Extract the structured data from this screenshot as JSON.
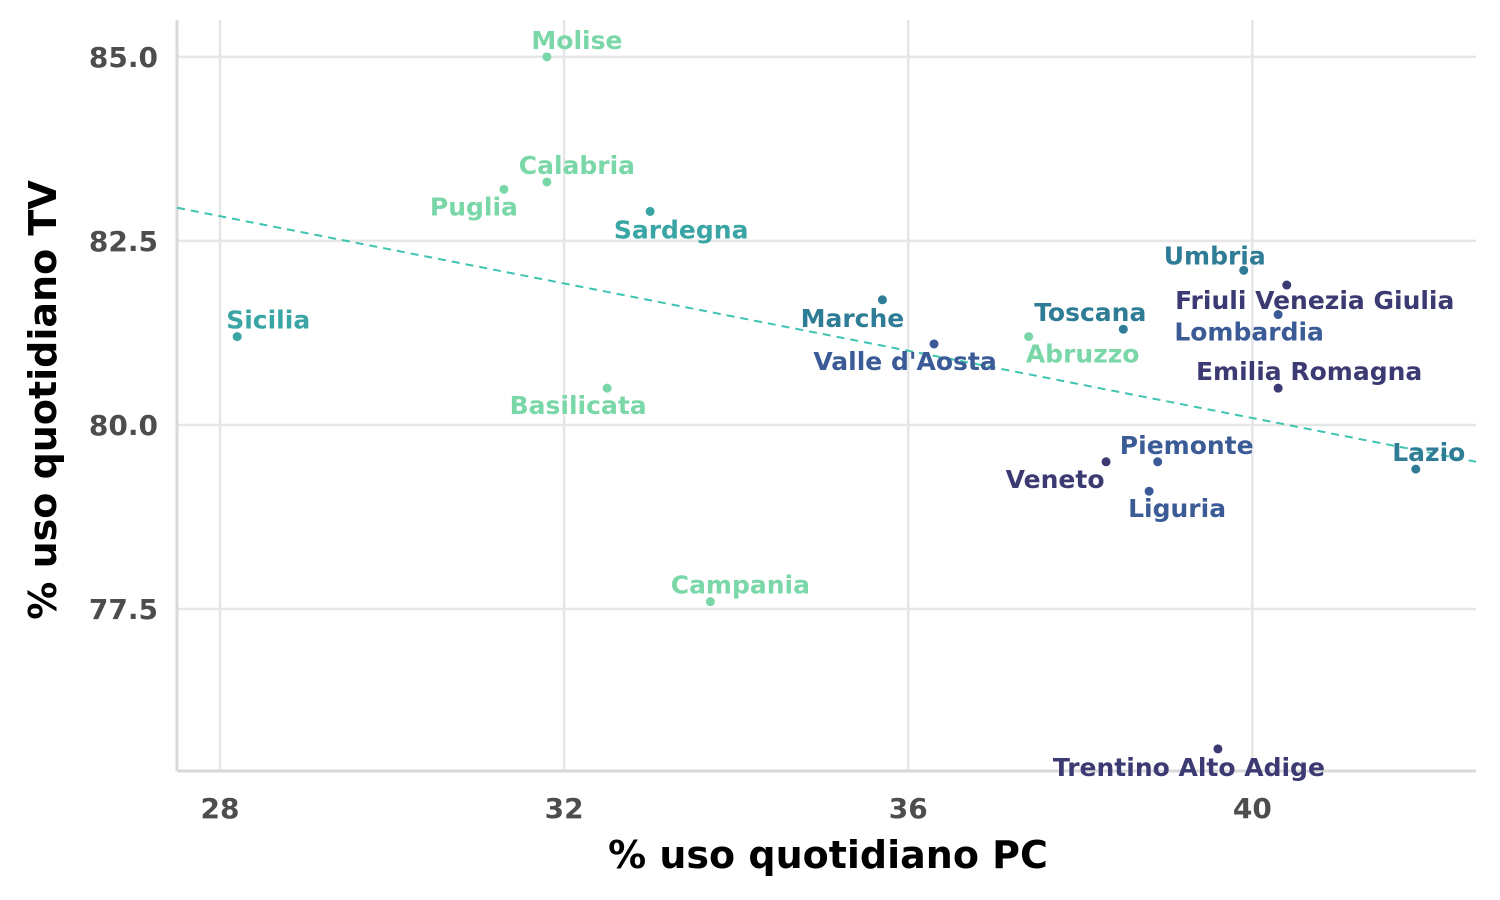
{
  "chart_data": {
    "type": "scatter",
    "xlabel": "% uso quotidiano PC",
    "ylabel": "% uso quotidiano TV",
    "xlim": [
      27.5,
      42.6
    ],
    "ylim": [
      75.3,
      85.5
    ],
    "xticks": [
      28,
      32,
      36,
      40
    ],
    "xtick_labels": [
      "28",
      "32",
      "36",
      "40"
    ],
    "yticks": [
      77.5,
      80.0,
      82.5,
      85.0
    ],
    "ytick_labels": [
      "77.5",
      "80.0",
      "82.5",
      "85.0"
    ],
    "grid": true,
    "trendline": {
      "x": [
        27.5,
        42.6
      ],
      "y": [
        82.95,
        79.5
      ],
      "color": "#3ec4b0"
    },
    "points": [
      {
        "label": "Molise",
        "x": 31.8,
        "y": 85.0,
        "color": "#7ad7a8",
        "anchor": "middle",
        "dx": 30,
        "dy": -8
      },
      {
        "label": "Calabria",
        "x": 31.8,
        "y": 83.3,
        "color": "#7ad7a8",
        "anchor": "middle",
        "dx": 30,
        "dy": -8
      },
      {
        "label": "Puglia",
        "x": 31.3,
        "y": 83.2,
        "color": "#7ad7a8",
        "anchor": "middle",
        "dx": -30,
        "dy": 26
      },
      {
        "label": "Sardegna",
        "x": 33.0,
        "y": 82.9,
        "color": "#3aa5a5",
        "anchor": "middle",
        "dx": 31,
        "dy": 27
      },
      {
        "label": "Sicilia",
        "x": 28.2,
        "y": 81.2,
        "color": "#3aa5a5",
        "anchor": "middle",
        "dx": 31,
        "dy": -8
      },
      {
        "label": "Basilicata",
        "x": 32.5,
        "y": 80.5,
        "color": "#7ad7a8",
        "anchor": "middle",
        "dx": -29,
        "dy": 26
      },
      {
        "label": "Campania",
        "x": 33.7,
        "y": 77.6,
        "color": "#7ad7a8",
        "anchor": "middle",
        "dx": 30,
        "dy": -8
      },
      {
        "label": "Marche",
        "x": 35.7,
        "y": 81.7,
        "color": "#2f7c96",
        "anchor": "middle",
        "dx": -30,
        "dy": 27
      },
      {
        "label": "Valle d'Aosta",
        "x": 36.3,
        "y": 81.1,
        "color": "#3a5b96",
        "anchor": "middle",
        "dx": -29,
        "dy": 26
      },
      {
        "label": "Abruzzo",
        "x": 37.4,
        "y": 81.2,
        "color": "#7ad7a8",
        "anchor": "middle",
        "dx": 54,
        "dy": 26
      },
      {
        "label": "Toscana",
        "x": 38.5,
        "y": 81.3,
        "color": "#2f7c96",
        "anchor": "middle",
        "dx": -33,
        "dy": -8
      },
      {
        "label": "Umbria",
        "x": 39.9,
        "y": 82.1,
        "color": "#2f7c96",
        "anchor": "middle",
        "dx": -29,
        "dy": -6
      },
      {
        "label": "Friuli Venezia Giulia",
        "x": 40.4,
        "y": 81.9,
        "color": "#3b3a72",
        "anchor": "middle",
        "dx": 28,
        "dy": 24
      },
      {
        "label": "Lombardia",
        "x": 40.3,
        "y": 81.5,
        "color": "#3a5b96",
        "anchor": "middle",
        "dx": -29,
        "dy": 26
      },
      {
        "label": "Emilia Romagna",
        "x": 40.3,
        "y": 80.5,
        "color": "#3b3a72",
        "anchor": "middle",
        "dx": 31,
        "dy": -8
      },
      {
        "label": "Lazio",
        "x": 41.9,
        "y": 79.4,
        "color": "#2f7c96",
        "anchor": "middle",
        "dx": 13,
        "dy": -8
      },
      {
        "label": "Piemonte",
        "x": 38.9,
        "y": 79.5,
        "color": "#3a5b96",
        "anchor": "middle",
        "dx": 29,
        "dy": -8
      },
      {
        "label": "Veneto",
        "x": 38.3,
        "y": 79.5,
        "color": "#3b3a72",
        "anchor": "middle",
        "dx": -51,
        "dy": 26
      },
      {
        "label": "Liguria",
        "x": 38.8,
        "y": 79.1,
        "color": "#3a5b96",
        "anchor": "middle",
        "dx": 28,
        "dy": 26
      },
      {
        "label": "Trentino Alto Adige",
        "x": 39.6,
        "y": 75.6,
        "color": "#3b3a72",
        "anchor": "middle",
        "dx": -29,
        "dy": 27
      }
    ]
  }
}
